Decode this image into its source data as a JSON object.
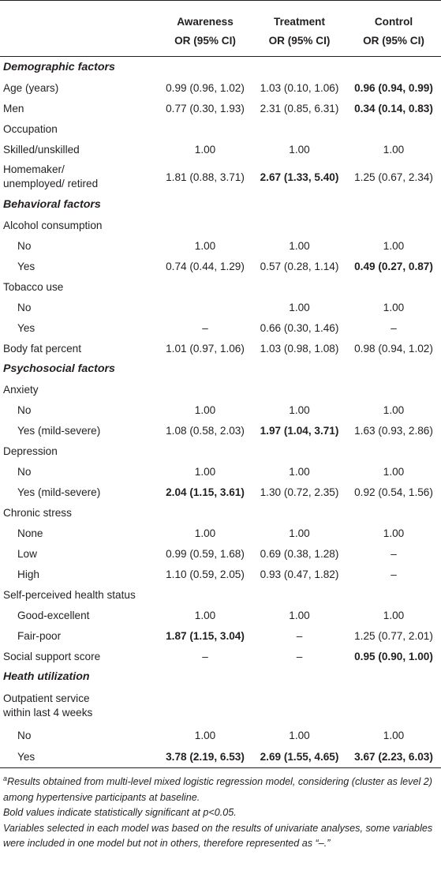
{
  "table": {
    "headers": [
      {
        "name": "Awareness",
        "sub": "OR (95% CI)"
      },
      {
        "name": "Treatment",
        "sub": "OR (95% CI)"
      },
      {
        "name": "Control",
        "sub": "OR (95% CI)"
      }
    ],
    "rows": [
      {
        "type": "section",
        "label": "Demographic factors"
      },
      {
        "type": "row",
        "label": "Age (years)",
        "values": [
          "0.99 (0.96, 1.02)",
          "1.03 (0.10, 1.06)",
          "0.96 (0.94, 0.99)"
        ],
        "bold": [
          false,
          false,
          true
        ]
      },
      {
        "type": "row",
        "label": "Men",
        "values": [
          "0.77 (0.30, 1.93)",
          "2.31 (0.85, 6.31)",
          "0.34 (0.14, 0.83)"
        ],
        "bold": [
          false,
          false,
          true
        ]
      },
      {
        "type": "row",
        "label": "Occupation",
        "values": [
          "",
          "",
          ""
        ],
        "bold": [
          false,
          false,
          false
        ]
      },
      {
        "type": "row",
        "label": "Skilled/unskilled",
        "values": [
          "1.00",
          "1.00",
          "1.00"
        ],
        "bold": [
          false,
          false,
          false
        ]
      },
      {
        "type": "row2",
        "label": "Homemaker/\nunemployed/ retired",
        "valign": "mid",
        "values": [
          "1.81 (0.88, 3.71)",
          "2.67 (1.33, 5.40)",
          "1.25 (0.67, 2.34)"
        ],
        "bold": [
          false,
          true,
          false
        ]
      },
      {
        "type": "section",
        "label": "Behavioral factors"
      },
      {
        "type": "row",
        "label": "Alcohol consumption",
        "values": [
          "",
          "",
          ""
        ],
        "bold": [
          false,
          false,
          false
        ]
      },
      {
        "type": "indent",
        "label": "No",
        "values": [
          "1.00",
          "1.00",
          "1.00"
        ],
        "bold": [
          false,
          false,
          false
        ]
      },
      {
        "type": "indent",
        "label": "Yes",
        "values": [
          "0.74 (0.44, 1.29)",
          "0.57 (0.28, 1.14)",
          "0.49 (0.27, 0.87)"
        ],
        "bold": [
          false,
          false,
          true
        ]
      },
      {
        "type": "row",
        "label": "Tobacco use",
        "values": [
          "",
          "",
          ""
        ],
        "bold": [
          false,
          false,
          false
        ]
      },
      {
        "type": "indent",
        "label": "No",
        "values": [
          "",
          "1.00",
          "1.00"
        ],
        "bold": [
          false,
          false,
          false
        ]
      },
      {
        "type": "indent",
        "label": "Yes",
        "values": [
          "–",
          "0.66 (0.30, 1.46)",
          "–"
        ],
        "bold": [
          false,
          false,
          false
        ]
      },
      {
        "type": "row",
        "label": "Body fat percent",
        "values": [
          "1.01 (0.97, 1.06)",
          "1.03 (0.98, 1.08)",
          "0.98 (0.94, 1.02)"
        ],
        "bold": [
          false,
          false,
          false
        ]
      },
      {
        "type": "section",
        "label": "Psychosocial factors"
      },
      {
        "type": "row",
        "label": "Anxiety",
        "values": [
          "",
          "",
          ""
        ],
        "bold": [
          false,
          false,
          false
        ]
      },
      {
        "type": "indent",
        "label": "No",
        "values": [
          "1.00",
          "1.00",
          "1.00"
        ],
        "bold": [
          false,
          false,
          false
        ]
      },
      {
        "type": "indent",
        "label": "Yes (mild-severe)",
        "values": [
          "1.08 (0.58, 2.03)",
          "1.97 (1.04, 3.71)",
          "1.63 (0.93, 2.86)"
        ],
        "bold": [
          false,
          true,
          false
        ]
      },
      {
        "type": "row",
        "label": "Depression",
        "values": [
          "",
          "",
          ""
        ],
        "bold": [
          false,
          false,
          false
        ]
      },
      {
        "type": "indent",
        "label": "No",
        "values": [
          "1.00",
          "1.00",
          "1.00"
        ],
        "bold": [
          false,
          false,
          false
        ]
      },
      {
        "type": "indent",
        "label": "Yes (mild-severe)",
        "values": [
          "2.04 (1.15, 3.61)",
          "1.30 (0.72, 2.35)",
          "0.92 (0.54, 1.56)"
        ],
        "bold": [
          true,
          false,
          false
        ]
      },
      {
        "type": "row",
        "label": "Chronic stress",
        "values": [
          "",
          "",
          ""
        ],
        "bold": [
          false,
          false,
          false
        ]
      },
      {
        "type": "indent",
        "label": "None",
        "values": [
          "1.00",
          "1.00",
          "1.00"
        ],
        "bold": [
          false,
          false,
          false
        ]
      },
      {
        "type": "indent",
        "label": "Low",
        "values": [
          "0.99 (0.59, 1.68)",
          "0.69 (0.38, 1.28)",
          "–"
        ],
        "bold": [
          false,
          false,
          false
        ]
      },
      {
        "type": "indent",
        "label": "High",
        "values": [
          "1.10 (0.59, 2.05)",
          "0.93 (0.47, 1.82)",
          "–"
        ],
        "bold": [
          false,
          false,
          false
        ]
      },
      {
        "type": "row",
        "label": "Self-perceived health status",
        "values": [
          "",
          "",
          ""
        ],
        "bold": [
          false,
          false,
          false
        ]
      },
      {
        "type": "indent",
        "label": "Good-excellent",
        "values": [
          "1.00",
          "1.00",
          "1.00"
        ],
        "bold": [
          false,
          false,
          false
        ]
      },
      {
        "type": "indent",
        "label": "Fair-poor",
        "values": [
          "1.87 (1.15, 3.04)",
          "–",
          "1.25 (0.77, 2.01)"
        ],
        "bold": [
          true,
          false,
          false
        ]
      },
      {
        "type": "row",
        "label": "Social support score",
        "values": [
          "–",
          "–",
          "0.95 (0.90, 1.00)"
        ],
        "bold": [
          false,
          false,
          true
        ]
      },
      {
        "type": "section",
        "label": "Heath utilization"
      },
      {
        "type": "row2",
        "label": "Outpatient service\nwithin last 4 weeks",
        "valign": "top",
        "values": [
          "",
          "",
          ""
        ],
        "bold": [
          false,
          false,
          false
        ]
      },
      {
        "type": "indent",
        "label": "No",
        "values": [
          "1.00",
          "1.00",
          "1.00"
        ],
        "bold": [
          false,
          false,
          false
        ]
      },
      {
        "type": "indent",
        "label": "Yes",
        "last": true,
        "values": [
          "3.78 (2.19, 6.53)",
          "2.69 (1.55, 4.65)",
          "3.67 (2.23, 6.03)"
        ],
        "bold": [
          true,
          true,
          true
        ]
      }
    ]
  },
  "notes": {
    "superscript": "a",
    "line1": "Results obtained from multi-level mixed logistic regression model, considering (cluster as level 2) among hypertensive participants at baseline.",
    "line2": "Bold values indicate statistically significant at p<0.05.",
    "line3": "Variables selected in each model was based on the results of univariate analyses, some variables were included in one model but not in others, therefore represented as “–.”"
  }
}
